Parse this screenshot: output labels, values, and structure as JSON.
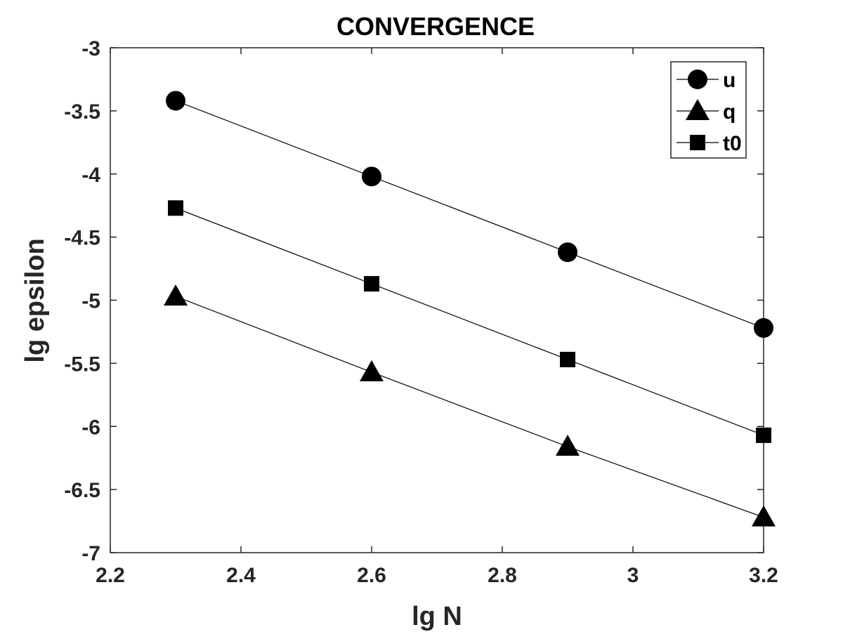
{
  "chart_data": {
    "type": "line",
    "title": "CONVERGENCE",
    "xlabel": "lg N",
    "ylabel": "lg epsilon",
    "xlim": [
      2.2,
      3.2
    ],
    "ylim": [
      -7,
      -3
    ],
    "xticks": [
      2.2,
      2.4,
      2.6,
      2.8,
      3,
      3.2
    ],
    "xtick_labels": [
      "2.2",
      "2.4",
      "2.6",
      "2.8",
      "3",
      "3.2"
    ],
    "yticks": [
      -3,
      -3.5,
      -4,
      -4.5,
      -5,
      -5.5,
      -6,
      -6.5,
      -7
    ],
    "ytick_labels": [
      "-3",
      "-3.5",
      "-4",
      "-4.5",
      "-5",
      "-5.5",
      "-6",
      "-6.5",
      "-7"
    ],
    "grid": false,
    "legend_position": "top-right",
    "x": [
      2.3,
      2.6,
      2.9,
      3.2
    ],
    "series": [
      {
        "name": "u",
        "marker": "circle",
        "values": [
          -3.42,
          -4.02,
          -4.62,
          -5.22
        ]
      },
      {
        "name": "q",
        "marker": "triangle",
        "values": [
          -4.97,
          -5.57,
          -6.16,
          -6.72
        ]
      },
      {
        "name": "t0",
        "marker": "square",
        "values": [
          -4.27,
          -4.87,
          -5.47,
          -6.07
        ]
      }
    ],
    "colors": {
      "line": "#000000",
      "axis": "#262626",
      "background": "#ffffff"
    }
  }
}
